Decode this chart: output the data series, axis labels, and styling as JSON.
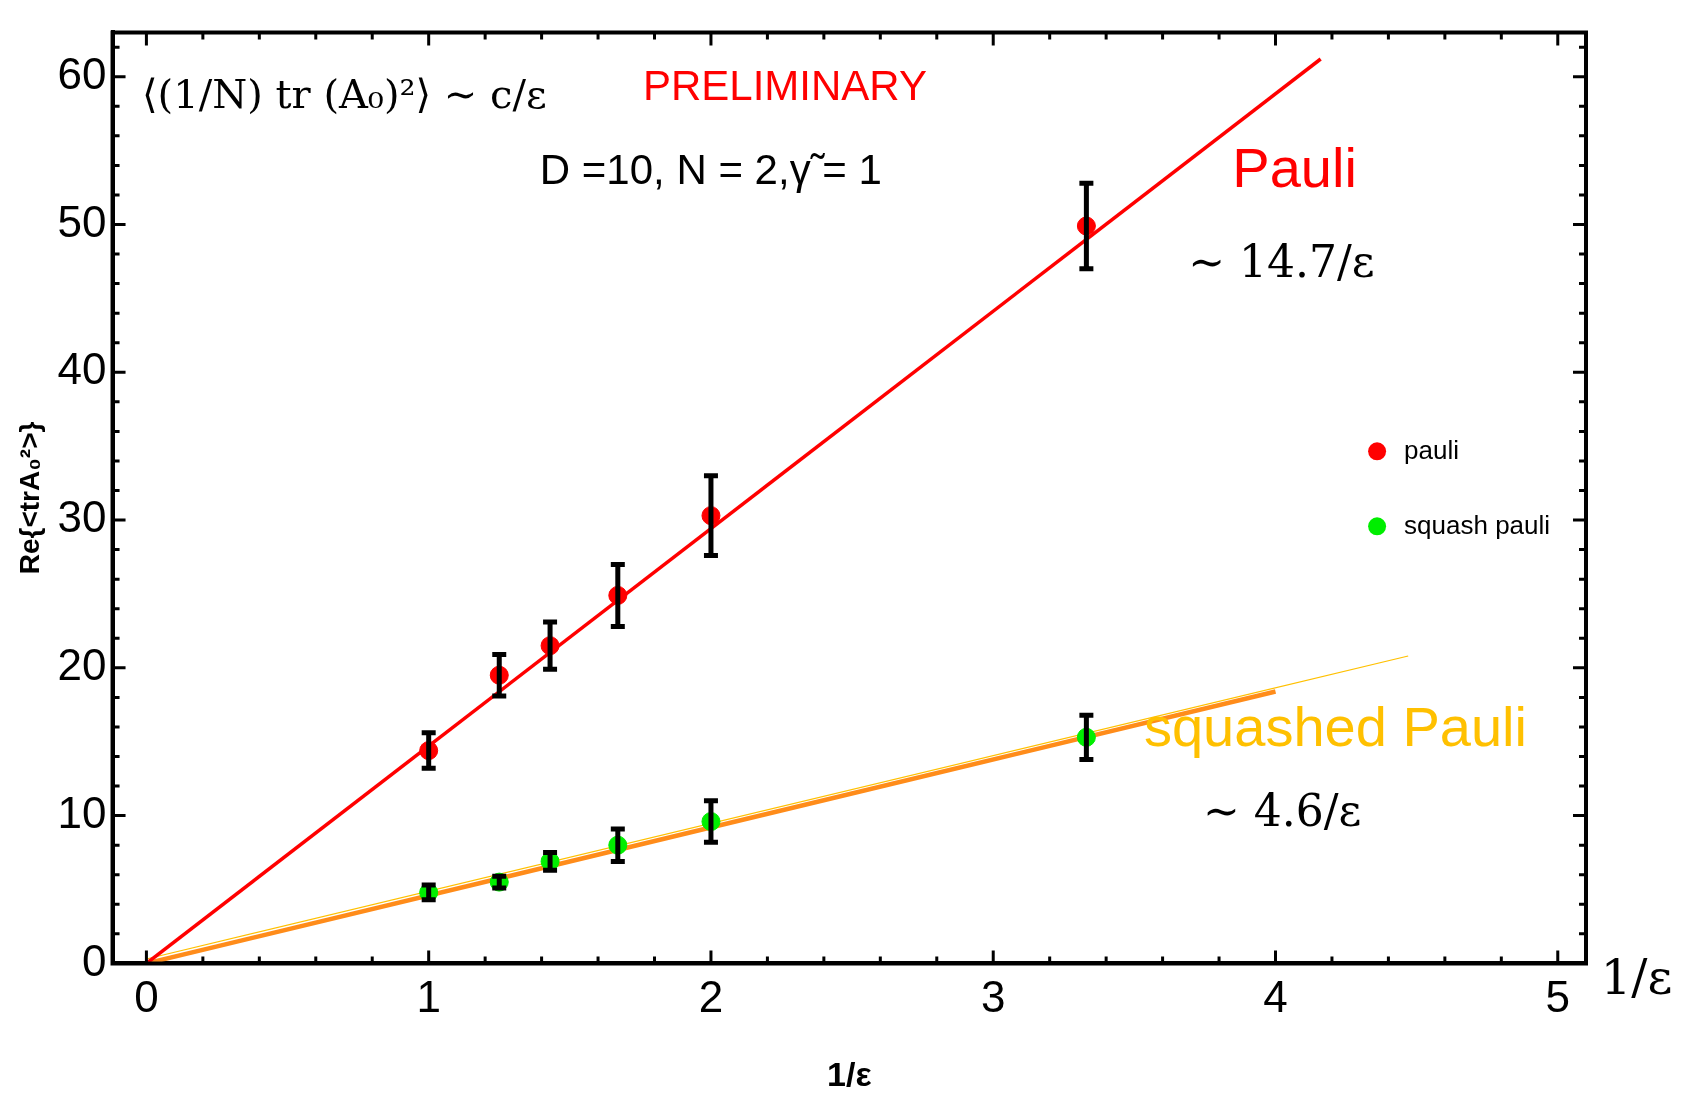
{
  "chart_data": {
    "type": "scatter",
    "xlabel": "1/ε",
    "ylabel": "Re{<trA₀²>}",
    "xlim": [
      -0.12,
      5.1
    ],
    "ylim": [
      0,
      63
    ],
    "xticks": [
      0,
      {
        "value": 0.2,
        "label": null
      },
      {
        "value": 0.4,
        "label": null
      },
      {
        "value": 0.6,
        "label": null
      },
      {
        "value": 0.8,
        "label": null
      },
      1,
      {
        "value": 1.2,
        "label": null
      },
      {
        "value": 1.4,
        "label": null
      },
      {
        "value": 1.6,
        "label": null
      },
      {
        "value": 1.8,
        "label": null
      },
      2,
      {
        "value": 2.2,
        "label": null
      },
      {
        "value": 2.4,
        "label": null
      },
      {
        "value": 2.6,
        "label": null
      },
      {
        "value": 2.8,
        "label": null
      },
      3,
      {
        "value": 3.2,
        "label": null
      },
      {
        "value": 3.4,
        "label": null
      },
      {
        "value": 3.6,
        "label": null
      },
      {
        "value": 3.8,
        "label": null
      },
      4,
      {
        "value": 4.2,
        "label": null
      },
      {
        "value": 4.4,
        "label": null
      },
      {
        "value": 4.6,
        "label": null
      },
      {
        "value": 4.8,
        "label": null
      },
      5
    ],
    "yticks": [
      0,
      {
        "value": 2,
        "label": null
      },
      {
        "value": 4,
        "label": null
      },
      {
        "value": 6,
        "label": null
      },
      {
        "value": 8,
        "label": null
      },
      10,
      {
        "value": 12,
        "label": null
      },
      {
        "value": 14,
        "label": null
      },
      {
        "value": 16,
        "label": null
      },
      {
        "value": 18,
        "label": null
      },
      20,
      {
        "value": 22,
        "label": null
      },
      {
        "value": 24,
        "label": null
      },
      {
        "value": 26,
        "label": null
      },
      {
        "value": 28,
        "label": null
      },
      30,
      {
        "value": 32,
        "label": null
      },
      {
        "value": 34,
        "label": null
      },
      {
        "value": 36,
        "label": null
      },
      {
        "value": 38,
        "label": null
      },
      40,
      {
        "value": 42,
        "label": null
      },
      {
        "value": 44,
        "label": null
      },
      {
        "value": 46,
        "label": null
      },
      {
        "value": 48,
        "label": null
      },
      50,
      {
        "value": 52,
        "label": null
      },
      {
        "value": 54,
        "label": null
      },
      {
        "value": 56,
        "label": null
      },
      {
        "value": 58,
        "label": null
      },
      60,
      {
        "value": 62,
        "label": null
      }
    ],
    "grid": false,
    "legend": "right",
    "marker": "circle",
    "series": [
      {
        "type": "line",
        "marker": "none",
        "color": "#ff0000",
        "x": [
          0,
          4.16
        ],
        "values": [
          0,
          61.2
        ]
      },
      {
        "type": "line",
        "marker": "none",
        "color": "#ffc000",
        "x": [
          0,
          4.47
        ],
        "values": [
          0.3,
          20.8
        ]
      },
      {
        "type": "line",
        "marker": "none",
        "color": "#ff8c1a",
        "x": [
          0,
          4
        ],
        "values": [
          0,
          18.4
        ]
      },
      {
        "name": "pauli",
        "color": "#ff0000",
        "x": [
          1,
          1.25,
          1.43,
          1.67,
          2,
          3.33
        ],
        "values": [
          14.4,
          19.5,
          21.5,
          24.9,
          30.3,
          49.9
        ],
        "errors": [
          1.2,
          1.4,
          1.6,
          2.1,
          2.7,
          2.9
        ]
      },
      {
        "name": "squash pauli",
        "color": "#00ee00",
        "x": [
          1,
          1.25,
          1.43,
          1.67,
          2,
          3.33
        ],
        "values": [
          4.8,
          5.5,
          6.9,
          8.0,
          9.6,
          15.3
        ],
        "errors": [
          0.5,
          0.4,
          0.6,
          1.1,
          1.4,
          1.5
        ]
      }
    ],
    "annotations": [
      "⟨(1/N) tr (A₀)²⟩ ∼ c/ε",
      "PRELIMINARY",
      "D =10, N = 2,γ̃ = 1",
      "Pauli",
      "∼ 14.7/ε",
      "squashed Pauli",
      "∼ 4.6/ε",
      "1/ε"
    ]
  }
}
